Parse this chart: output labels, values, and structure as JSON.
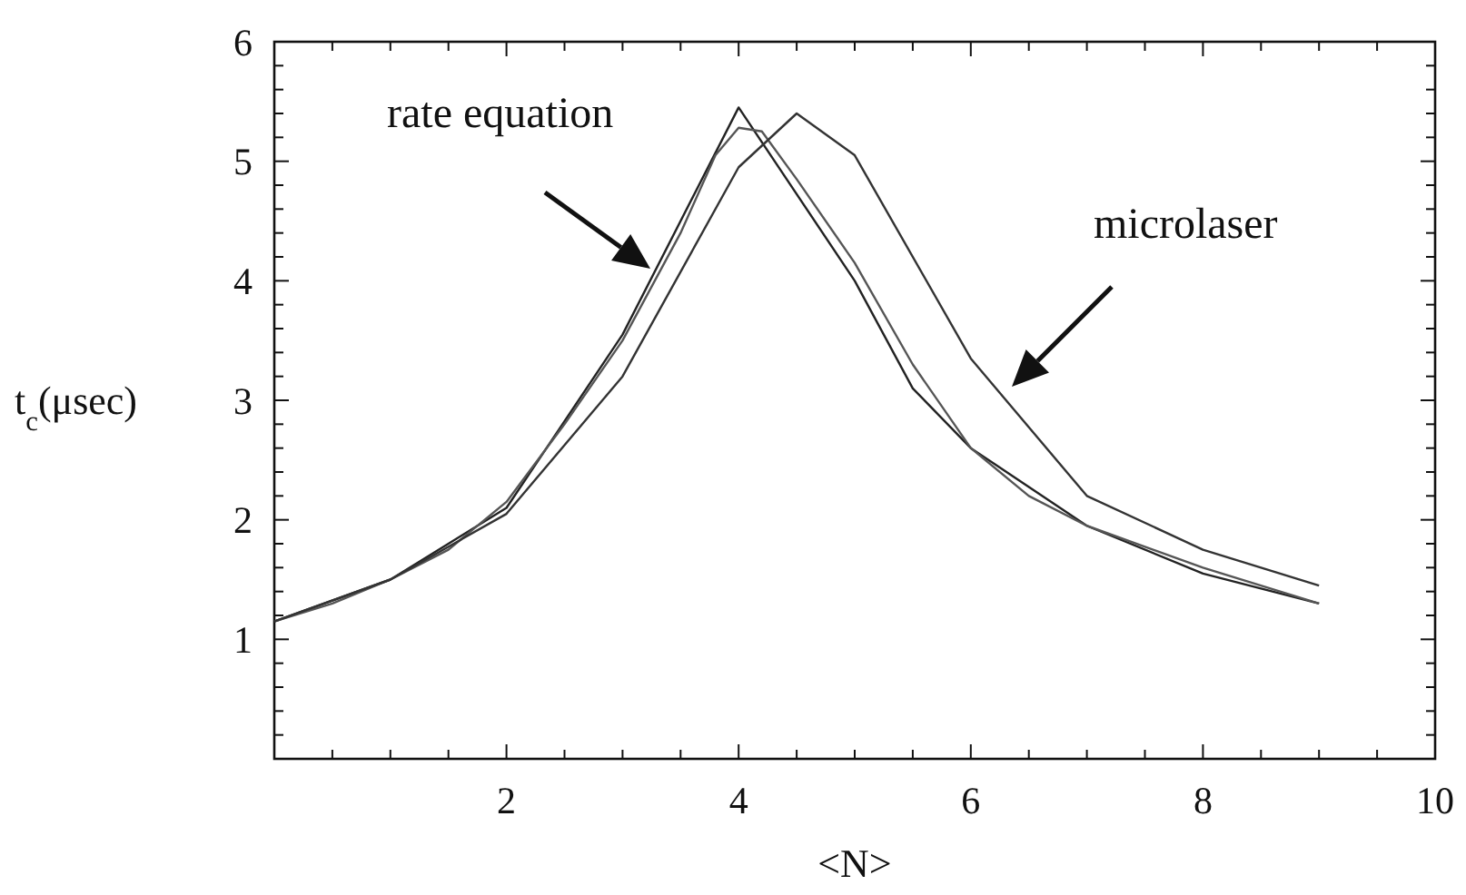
{
  "chart_data": {
    "type": "line",
    "xlabel": "<N>",
    "ylabel": "t$_{c}$(μsec)",
    "xlim": [
      0,
      10
    ],
    "ylim": [
      0,
      6
    ],
    "xticks": [
      {
        "value": 0.5,
        "label": null
      },
      {
        "value": 1,
        "label": null
      },
      {
        "value": 1.5,
        "label": null
      },
      2,
      {
        "value": 2.5,
        "label": null
      },
      {
        "value": 3,
        "label": null
      },
      {
        "value": 3.5,
        "label": null
      },
      4,
      {
        "value": 4.5,
        "label": null
      },
      {
        "value": 5,
        "label": null
      },
      {
        "value": 5.5,
        "label": null
      },
      6,
      {
        "value": 6.5,
        "label": null
      },
      {
        "value": 7,
        "label": null
      },
      {
        "value": 7.5,
        "label": null
      },
      8,
      {
        "value": 8.5,
        "label": null
      },
      {
        "value": 9,
        "label": null
      },
      {
        "value": 9.5,
        "label": null
      },
      10
    ],
    "yticks": [
      {
        "value": 0.2,
        "label": null
      },
      {
        "value": 0.4,
        "label": null
      },
      {
        "value": 0.6,
        "label": null
      },
      {
        "value": 0.8,
        "label": null
      },
      1,
      {
        "value": 1.2,
        "label": null
      },
      {
        "value": 1.4,
        "label": null
      },
      {
        "value": 1.6,
        "label": null
      },
      {
        "value": 1.8,
        "label": null
      },
      2,
      {
        "value": 2.2,
        "label": null
      },
      {
        "value": 2.4,
        "label": null
      },
      {
        "value": 2.6,
        "label": null
      },
      {
        "value": 2.8,
        "label": null
      },
      3,
      {
        "value": 3.2,
        "label": null
      },
      {
        "value": 3.4,
        "label": null
      },
      {
        "value": 3.6,
        "label": null
      },
      {
        "value": 3.8,
        "label": null
      },
      4,
      {
        "value": 4.2,
        "label": null
      },
      {
        "value": 4.4,
        "label": null
      },
      {
        "value": 4.6,
        "label": null
      },
      {
        "value": 4.8,
        "label": null
      },
      5,
      {
        "value": 5.2,
        "label": null
      },
      {
        "value": 5.4,
        "label": null
      },
      {
        "value": 5.6,
        "label": null
      },
      {
        "value": 5.8,
        "label": null
      },
      6
    ],
    "grid": false,
    "marker": "none",
    "line_style": "solid",
    "series": [
      {
        "color": "#222222",
        "x": [
          0,
          1,
          2,
          3,
          4,
          5,
          5.5,
          6,
          7,
          8,
          9
        ],
        "values": [
          1.15,
          1.5,
          2.1,
          3.55,
          5.45,
          4.0,
          3.1,
          2.6,
          1.95,
          1.55,
          1.3
        ]
      },
      {
        "color": "#555555",
        "x": [
          0,
          0.5,
          1,
          1.5,
          2,
          2.5,
          3,
          3.5,
          3.8,
          4,
          4.2,
          4.5,
          5,
          5.5,
          6,
          6.5,
          7,
          8,
          9
        ],
        "values": [
          1.15,
          1.3,
          1.5,
          1.75,
          2.15,
          2.8,
          3.5,
          4.4,
          5.05,
          5.28,
          5.25,
          4.85,
          4.15,
          3.3,
          2.6,
          2.2,
          1.95,
          1.6,
          1.3
        ]
      },
      {
        "color": "#333333",
        "x": [
          0,
          1,
          2,
          3,
          4,
          4.5,
          5,
          6,
          7,
          8,
          9
        ],
        "values": [
          1.15,
          1.5,
          2.05,
          3.2,
          4.95,
          5.4,
          5.05,
          3.35,
          2.2,
          1.75,
          1.45
        ]
      }
    ],
    "annotations": [
      "rate equation",
      "microlaser"
    ]
  }
}
